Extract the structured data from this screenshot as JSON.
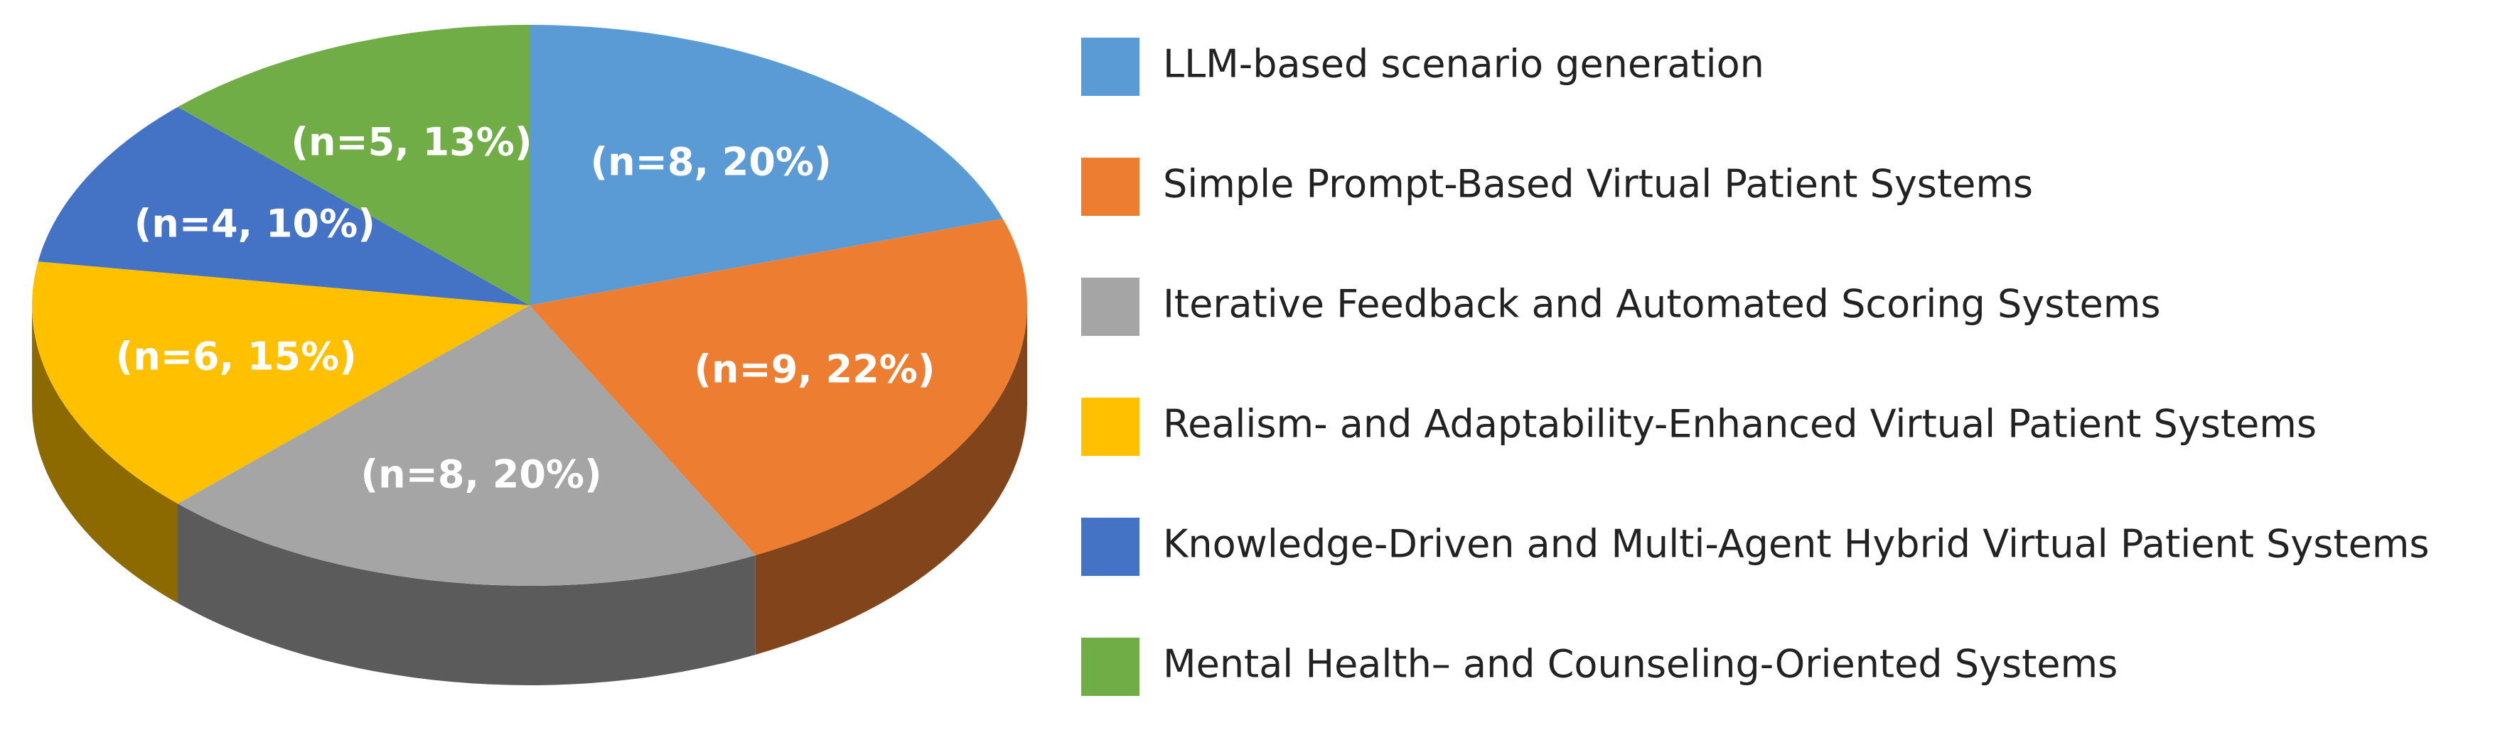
{
  "chart_data": {
    "type": "pie",
    "categories": [
      "LLM-based scenario generation",
      "Simple Prompt-Based Virtual Patient Systems",
      "Iterative Feedback and Automated Scoring Systems",
      "Realism- and Adaptability-Enhanced Virtual Patient Systems",
      "Knowledge-Driven and Multi-Agent Hybrid Virtual Patient Systems",
      "Mental Health– and Counseling-Oriented Systems"
    ],
    "values": [
      8,
      9,
      8,
      6,
      4,
      5
    ],
    "value_labels": [
      "(n=8, 20%)",
      "(n=9, 22%)",
      "(n=8, 20%)",
      "(n=6, 15%)",
      "(n=4, 10%)",
      "(n=5, 13%)"
    ],
    "colors": [
      "#5b9bd5",
      "#ed7d31",
      "#a5a5a5",
      "#ffc000",
      "#4472c4",
      "#70ad47"
    ],
    "legend": "right"
  }
}
